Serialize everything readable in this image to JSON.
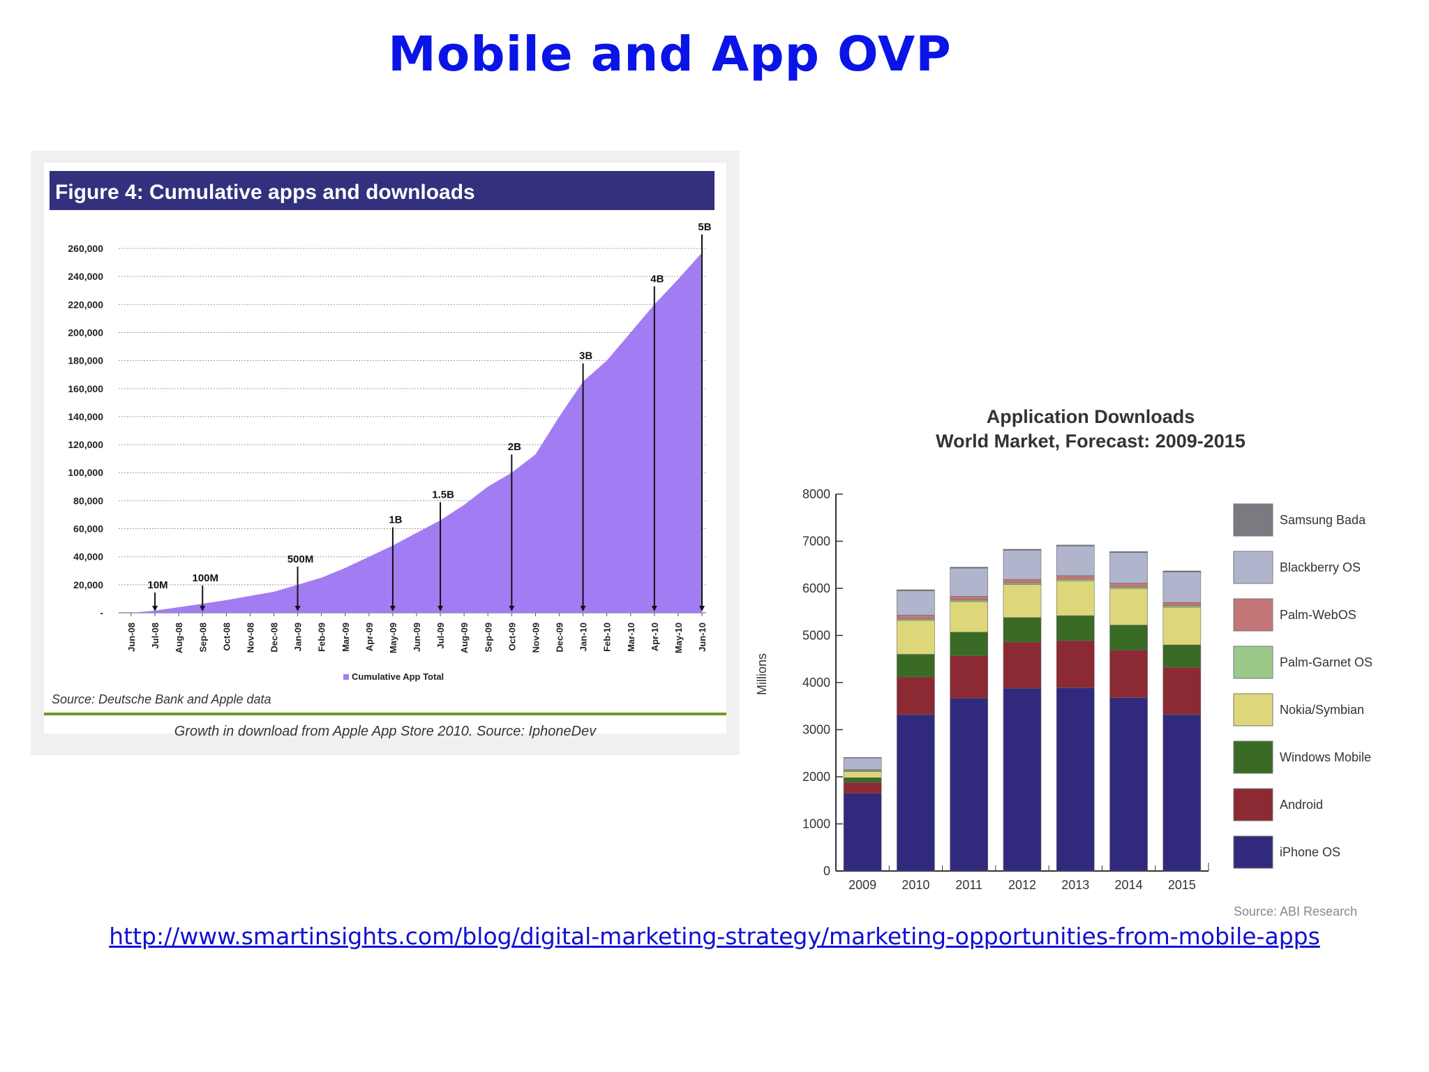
{
  "slide": {
    "title": "Mobile and App OVP",
    "link": "http://www.smartinsights.com/blog/digital-marketing-strategy/marketing-opportunities-from-mobile-apps"
  },
  "chart_data": [
    {
      "type": "area",
      "title": "Figure 4: Cumulative apps and downloads",
      "x": [
        "Jun-08",
        "Jul-08",
        "Aug-08",
        "Sep-08",
        "Oct-08",
        "Nov-08",
        "Dec-08",
        "Jan-09",
        "Feb-09",
        "Mar-09",
        "Apr-09",
        "May-09",
        "Jun-09",
        "Jul-09",
        "Aug-09",
        "Sep-09",
        "Oct-09",
        "Nov-09",
        "Dec-09",
        "Jan-10",
        "Feb-10",
        "Mar-10",
        "Apr-10",
        "May-10",
        "Jun-10"
      ],
      "series": [
        {
          "name": "Cumulative App Total",
          "color": "#a27cf2",
          "values": [
            0,
            1500,
            4000,
            6500,
            9000,
            12000,
            15000,
            20000,
            25000,
            32000,
            40000,
            48000,
            57000,
            66000,
            77000,
            90000,
            100000,
            113000,
            140000,
            165000,
            180000,
            200000,
            220000,
            238000,
            257000
          ]
        }
      ],
      "ylim": [
        0,
        260000
      ],
      "yticks": [
        "-",
        "20,000",
        "40,000",
        "60,000",
        "80,000",
        "100,000",
        "120,000",
        "140,000",
        "160,000",
        "180,000",
        "200,000",
        "220,000",
        "240,000",
        "260,000"
      ],
      "annotations": [
        {
          "label": "10M",
          "x": "Jul-08"
        },
        {
          "label": "100M",
          "x": "Sep-08"
        },
        {
          "label": "500M",
          "x": "Jan-09"
        },
        {
          "label": "1B",
          "x": "May-09"
        },
        {
          "label": "1.5B",
          "x": "Jul-09"
        },
        {
          "label": "2B",
          "x": "Oct-09"
        },
        {
          "label": "3B",
          "x": "Jan-10"
        },
        {
          "label": "4B",
          "x": "Apr-10"
        },
        {
          "label": "5B",
          "x": "Jun-10"
        }
      ],
      "legend": "Cumulative App Total",
      "source": "Source: Deutsche Bank and Apple data",
      "caption": "Growth in download from Apple App Store 2010. Source: IphoneDev",
      "grid": true,
      "colors": {
        "header_bg": "#33307e",
        "header_text": "#ffffff",
        "area": "#a27cf2",
        "rule": "#6a9a2a"
      }
    },
    {
      "type": "bar",
      "stacked": true,
      "title": "Application Downloads",
      "subtitle": "World Market, Forecast: 2009-2015",
      "ylabel": "Millions",
      "categories": [
        "2009",
        "2010",
        "2011",
        "2012",
        "2013",
        "2014",
        "2015"
      ],
      "ylim": [
        0,
        8000
      ],
      "yticks": [
        0,
        1000,
        2000,
        3000,
        4000,
        5000,
        6000,
        7000,
        8000
      ],
      "series": [
        {
          "name": "iPhone OS",
          "color": "#312a7c",
          "values": [
            1650,
            3320,
            3670,
            3880,
            3890,
            3680,
            3320
          ]
        },
        {
          "name": "Android",
          "color": "#8c2a33",
          "values": [
            230,
            800,
            900,
            980,
            1000,
            1010,
            1000
          ]
        },
        {
          "name": "Windows Mobile",
          "color": "#3a6b26",
          "values": [
            100,
            480,
            500,
            520,
            530,
            530,
            480
          ]
        },
        {
          "name": "Nokia/Symbian",
          "color": "#ddd77a",
          "values": [
            130,
            720,
            650,
            700,
            740,
            780,
            800
          ]
        },
        {
          "name": "Palm-Garnet OS",
          "color": "#9ac98a",
          "values": [
            20,
            30,
            30,
            30,
            30,
            30,
            30
          ]
        },
        {
          "name": "Palm-WebOS",
          "color": "#c47575",
          "values": [
            20,
            80,
            80,
            80,
            80,
            80,
            70
          ]
        },
        {
          "name": "Blackberry OS",
          "color": "#b0b4cc",
          "values": [
            250,
            520,
            600,
            620,
            630,
            650,
            650
          ]
        },
        {
          "name": "Samsung Bada",
          "color": "#7a7a80",
          "values": [
            10,
            20,
            20,
            20,
            20,
            20,
            20
          ]
        }
      ],
      "legend_position": "right",
      "source": "Source: ABI Research"
    }
  ]
}
